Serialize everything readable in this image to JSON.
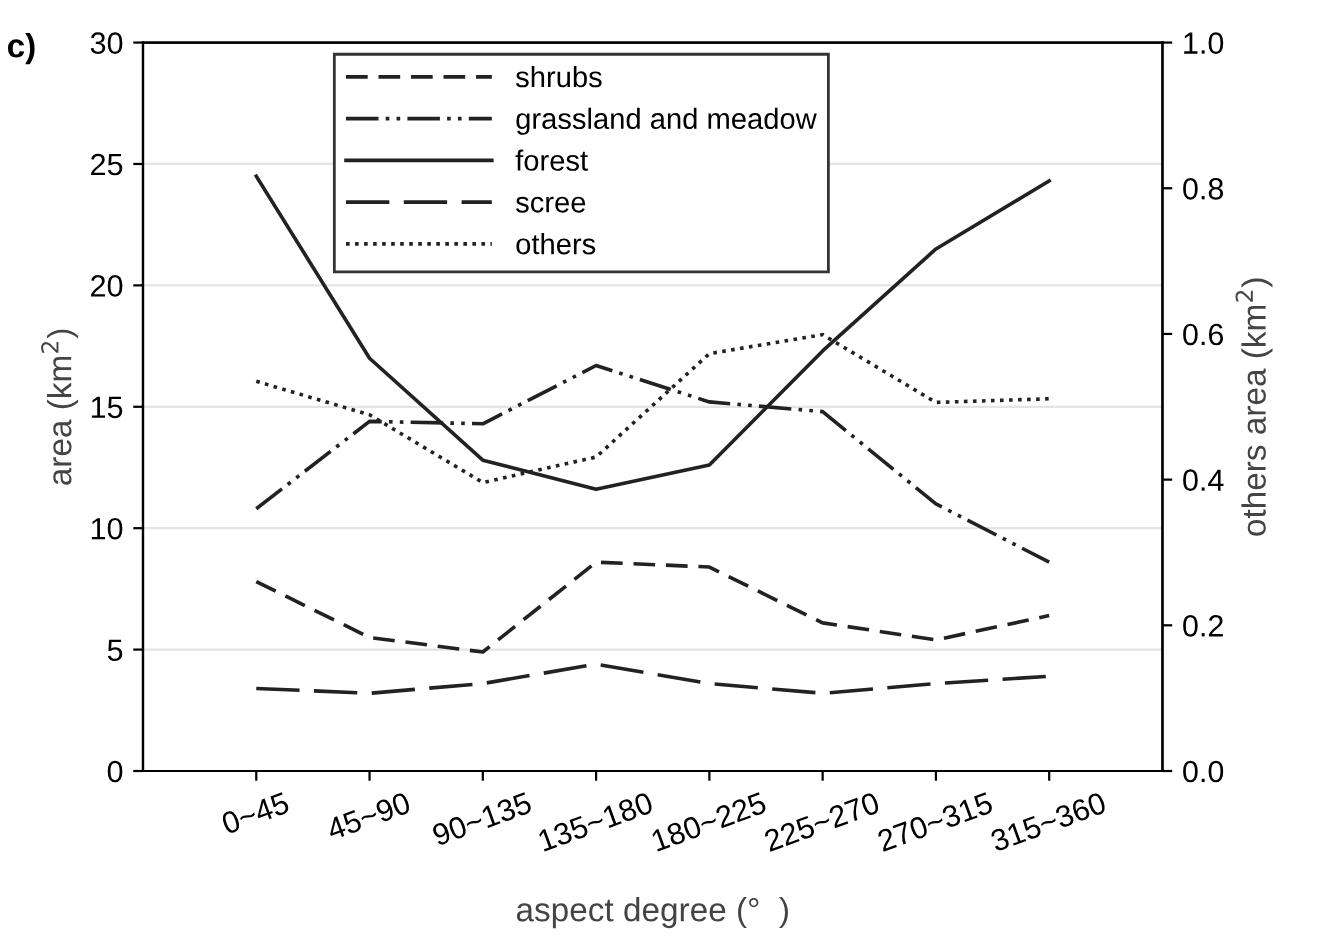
{
  "chart_data": {
    "type": "line",
    "xlabel": "aspect degree (°  )",
    "ylabel": "area (km$^{2}$)",
    "y2label": "others area (km$^{2}$)",
    "annotations": [
      "c)"
    ],
    "categories": [
      "0~45",
      "45~90",
      "90~135",
      "135~180",
      "180~225",
      "225~270",
      "270~315",
      "315~360"
    ],
    "series": [
      {
        "name": "shrubs",
        "color": "#222222",
        "line_style": "dashed",
        "values": [
          7.8,
          5.5,
          4.9,
          8.6,
          8.4,
          6.1,
          5.4,
          6.4
        ]
      },
      {
        "name": "grassland and meadow",
        "color": "#222222",
        "line_style": "dashdotdot",
        "values": [
          10.8,
          14.4,
          14.3,
          16.7,
          15.2,
          14.8,
          11.0,
          8.6
        ]
      },
      {
        "name": "forest",
        "color": "#222222",
        "line_style": "solid",
        "values": [
          24.5,
          17.0,
          12.8,
          11.6,
          12.6,
          17.3,
          21.5,
          24.3
        ]
      },
      {
        "name": "scree",
        "color": "#222222",
        "line_style": "longdash",
        "values": [
          3.4,
          3.2,
          3.6,
          4.4,
          3.6,
          3.2,
          3.6,
          3.9
        ]
      },
      {
        "name": "others",
        "color": "#222222",
        "line_style": "dotted",
        "axis": "y2",
        "values": [
          0.535,
          0.489,
          0.396,
          0.431,
          0.573,
          0.599,
          0.506,
          0.511
        ]
      }
    ],
    "ylim": [
      0,
      30
    ],
    "yticks": [
      0,
      5,
      10,
      15,
      20,
      25,
      30
    ],
    "y2lim": [
      0.0,
      1.0
    ],
    "y2ticks": [
      {
        "value": 0,
        "label": "0.0"
      },
      {
        "value": 0.2,
        "label": "0.2"
      },
      {
        "value": 0.4,
        "label": "0.4"
      },
      {
        "value": 0.6,
        "label": "0.6"
      },
      {
        "value": 0.8,
        "label": "0.8"
      },
      {
        "value": 1.0,
        "label": "1.0"
      }
    ],
    "grid": "y",
    "legend": "top",
    "marker": "none"
  }
}
